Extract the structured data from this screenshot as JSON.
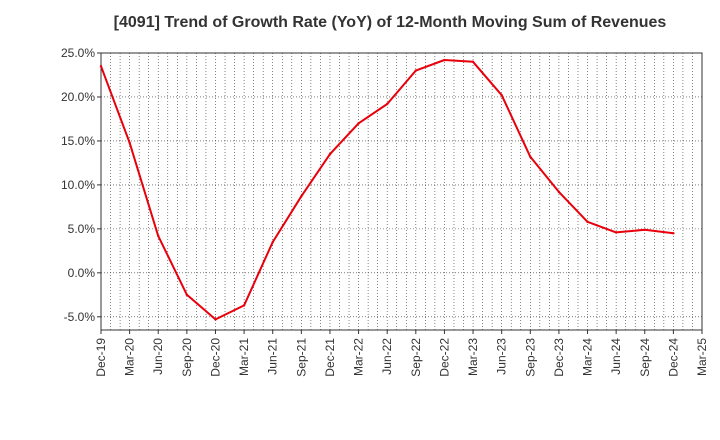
{
  "chart_data": {
    "type": "line",
    "title": "[4091]  Trend of Growth Rate (YoY) of 12-Month Moving Sum of Revenues",
    "xlabel": "",
    "ylabel": "",
    "x": [
      "Dec-19",
      "Mar-20",
      "Jun-20",
      "Sep-20",
      "Dec-20",
      "Mar-21",
      "Jun-21",
      "Sep-21",
      "Dec-21",
      "Mar-22",
      "Jun-22",
      "Sep-22",
      "Dec-22",
      "Mar-23",
      "Jun-23",
      "Sep-23",
      "Dec-23",
      "Mar-24",
      "Jun-24",
      "Sep-24",
      "Dec-24",
      "Mar-25"
    ],
    "series": [
      {
        "name": "",
        "color": "#e8000b",
        "values": [
          23.5,
          14.8,
          4.2,
          -2.5,
          -5.3,
          -3.7,
          3.5,
          8.7,
          13.5,
          17.0,
          19.2,
          23.0,
          24.2,
          24.0,
          20.2,
          13.2,
          9.2,
          5.8,
          4.6,
          4.9,
          4.5,
          null
        ]
      }
    ],
    "ylim": [
      -6.5,
      25.0
    ],
    "yticks": [
      25.0,
      20.0,
      15.0,
      10.0,
      5.0,
      0.0,
      -5.0
    ],
    "ytick_labels": [
      "25.0%",
      "20.0%",
      "15.0%",
      "10.0%",
      "5.0%",
      "0.0%",
      "-5.0%"
    ],
    "grid": true,
    "grid_style": "dotted",
    "legend": "none",
    "colors": {
      "line": "#e8000b",
      "grid": "#333333",
      "axis": "#333333",
      "text": "#333333"
    }
  }
}
